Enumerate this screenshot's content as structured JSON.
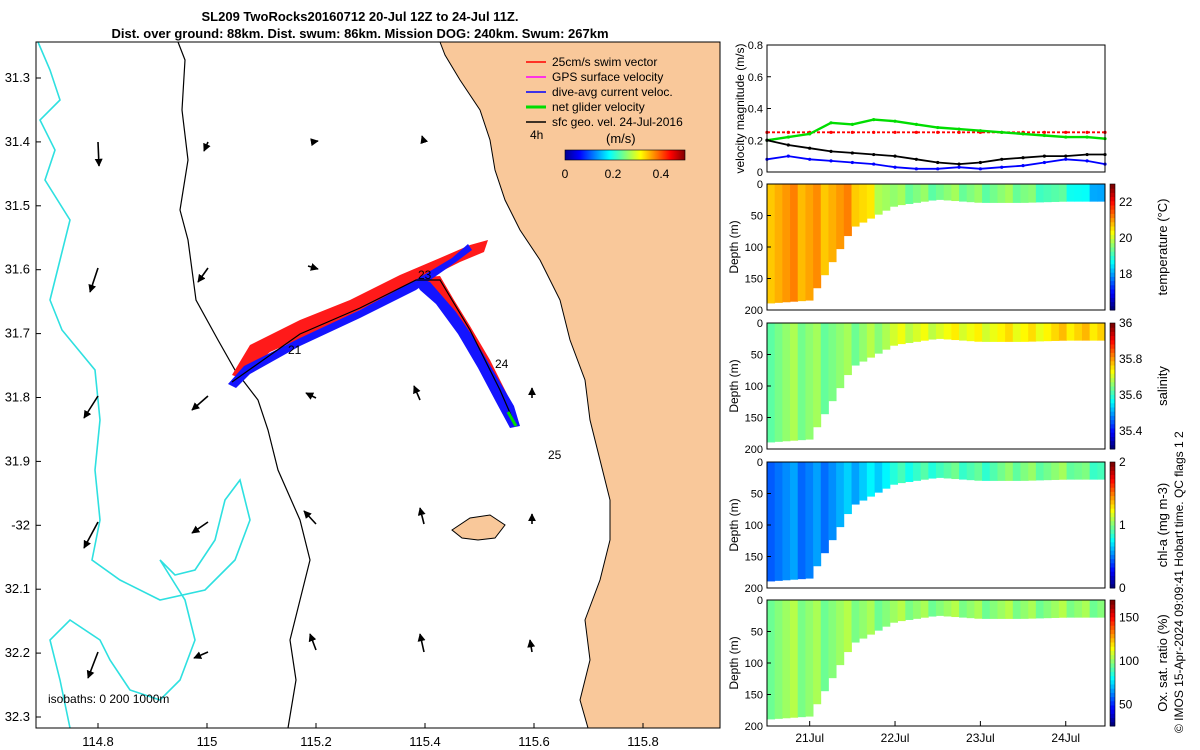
{
  "header": {
    "title_line1": "SL209 TwoRocks20160712 20-Jul 12Z to 24-Jul 11Z.",
    "title_line2": "Dist. over ground: 88km. Dist. swum: 86km. Mission DOG: 240km. Swum: 267km"
  },
  "credit": "© IMOS 15-Apr-2024 09:09:41 Hobart time. QC flags 1  2",
  "colors": {
    "land": "#f9c89a",
    "isobath": "#2ee0e0",
    "swim_vector": "#ff0000",
    "gps_velocity": "#ff00ff",
    "dive_avg_current": "#0000ff",
    "net_glider_velocity": "#00dd00",
    "geo_velocity": "#000000"
  },
  "map": {
    "lon_ticks": [
      "114.8",
      "115",
      "115.2",
      "115.4",
      "115.6",
      "115.8"
    ],
    "lat_ticks": [
      "31.3",
      "31.4",
      "31.5",
      "31.6",
      "31.7",
      "31.8",
      "31.9",
      "-32",
      "32.1",
      "32.2",
      "32.3"
    ],
    "legend": [
      {
        "label": "25cm/s swim vector",
        "color": "#ff0000"
      },
      {
        "label": "GPS surface velocity",
        "color": "#ff00ff"
      },
      {
        "label": "dive-avg current veloc.",
        "color": "#0000ff"
      },
      {
        "label": "net glider velocity",
        "color": "#00dd00"
      },
      {
        "label": "sfc geo. vel. 24-Jul-2016",
        "color": "#000000"
      }
    ],
    "time_step_label": "4h",
    "colorbar_title": "(m/s)",
    "colorbar_ticks": [
      "0",
      "0.2",
      "0.4"
    ],
    "day_labels": [
      "21",
      "23",
      "24",
      "25"
    ],
    "isobath_caption": "isobaths: 0   200  1000m"
  },
  "chart_data": [
    {
      "type": "line",
      "title": "",
      "xlabel": "",
      "ylabel": "velocity magnitude (m/s)",
      "ylim": [
        0,
        0.8
      ],
      "yticks": [
        "0",
        "0.2",
        "0.4",
        "0.6",
        "0.8"
      ],
      "x": [
        20.5,
        20.75,
        21.0,
        21.25,
        21.5,
        21.75,
        22.0,
        22.25,
        22.5,
        22.75,
        23.0,
        23.25,
        23.5,
        23.75,
        24.0,
        24.25,
        24.46
      ],
      "series": [
        {
          "name": "swim vector",
          "color": "#ff0000",
          "values": [
            0.25,
            0.25,
            0.25,
            0.25,
            0.25,
            0.25,
            0.25,
            0.25,
            0.25,
            0.25,
            0.25,
            0.25,
            0.25,
            0.25,
            0.25,
            0.25,
            0.25
          ]
        },
        {
          "name": "net glider velocity",
          "color": "#00dd00",
          "values": [
            0.2,
            0.22,
            0.24,
            0.31,
            0.3,
            0.33,
            0.32,
            0.3,
            0.28,
            0.27,
            0.26,
            0.25,
            0.24,
            0.23,
            0.22,
            0.22,
            0.21
          ]
        },
        {
          "name": "dive-avg current",
          "color": "#0000ff",
          "values": [
            0.08,
            0.1,
            0.08,
            0.07,
            0.06,
            0.05,
            0.03,
            0.02,
            0.02,
            0.03,
            0.02,
            0.03,
            0.04,
            0.06,
            0.08,
            0.07,
            0.05
          ]
        },
        {
          "name": "sfc geo. velocity",
          "color": "#000000",
          "values": [
            0.2,
            0.17,
            0.15,
            0.13,
            0.12,
            0.11,
            0.1,
            0.08,
            0.06,
            0.05,
            0.06,
            0.08,
            0.09,
            0.1,
            0.1,
            0.11,
            0.11
          ]
        }
      ]
    },
    {
      "type": "heatmap",
      "variable": "temperature",
      "ylabel": "Depth (m)",
      "colorbar_label": "temperature (°C)",
      "ylim": [
        200,
        0
      ],
      "yticks": [
        "0",
        "50",
        "100",
        "150",
        "200"
      ],
      "crange": [
        16,
        23
      ],
      "cticks": [
        "18",
        "20",
        "22"
      ],
      "x": [
        20.5,
        21.0,
        21.5,
        22.0,
        22.5,
        23.0,
        23.5,
        24.0,
        24.46
      ],
      "max_depth": [
        190,
        185,
        70,
        35,
        25,
        30,
        30,
        28,
        28
      ],
      "surface_values": [
        21,
        21,
        21,
        19.5,
        19.5,
        19.5,
        19.5,
        19,
        18
      ]
    },
    {
      "type": "heatmap",
      "variable": "salinity",
      "ylabel": "Depth (m)",
      "colorbar_label": "salinity",
      "ylim": [
        200,
        0
      ],
      "yticks": [
        "0",
        "50",
        "100",
        "150",
        "200"
      ],
      "crange": [
        35.3,
        36.0
      ],
      "cticks": [
        "35.4",
        "35.6",
        "35.8",
        "36"
      ],
      "x": [
        20.5,
        21.0,
        21.5,
        22.0,
        22.5,
        23.0,
        23.5,
        24.0,
        24.46
      ],
      "max_depth": [
        190,
        185,
        70,
        35,
        25,
        30,
        30,
        28,
        28
      ],
      "surface_values": [
        35.65,
        35.66,
        35.65,
        35.7,
        35.72,
        35.73,
        35.74,
        35.76,
        35.78
      ]
    },
    {
      "type": "heatmap",
      "variable": "chl-a",
      "ylabel": "Depth (m)",
      "colorbar_label": "chl-a (mg m-3)",
      "ylim": [
        200,
        0
      ],
      "yticks": [
        "0",
        "50",
        "100",
        "150",
        "200"
      ],
      "crange": [
        0,
        2
      ],
      "cticks": [
        "0",
        "1",
        "2"
      ],
      "x": [
        20.5,
        21.0,
        21.5,
        22.0,
        22.5,
        23.0,
        23.5,
        24.0,
        24.46
      ],
      "max_depth": [
        190,
        185,
        70,
        35,
        25,
        30,
        30,
        28,
        28
      ],
      "surface_values": [
        0.5,
        0.5,
        0.6,
        0.8,
        0.9,
        0.9,
        1.0,
        1.0,
        0.9
      ]
    },
    {
      "type": "heatmap",
      "variable": "oxygen saturation",
      "ylabel": "Depth (m)",
      "colorbar_label": "Ox. sat. ratio (%)",
      "ylim": [
        200,
        0
      ],
      "yticks": [
        "0",
        "50",
        "100",
        "150",
        "200"
      ],
      "crange": [
        25,
        170
      ],
      "cticks": [
        "50",
        "100",
        "150"
      ],
      "x": [
        20.5,
        21.0,
        21.5,
        22.0,
        22.5,
        23.0,
        23.5,
        24.0,
        24.46
      ],
      "max_depth": [
        190,
        185,
        70,
        35,
        25,
        30,
        30,
        28,
        28
      ],
      "surface_values": [
        100,
        100,
        100,
        100,
        100,
        100,
        100,
        100,
        100
      ]
    }
  ],
  "time_axis": {
    "range": [
      20.5,
      24.46
    ],
    "ticks": [
      {
        "value": 21,
        "label": "21Jul"
      },
      {
        "value": 22,
        "label": "22Jul"
      },
      {
        "value": 23,
        "label": "23Jul"
      },
      {
        "value": 24,
        "label": "24Jul"
      }
    ]
  }
}
